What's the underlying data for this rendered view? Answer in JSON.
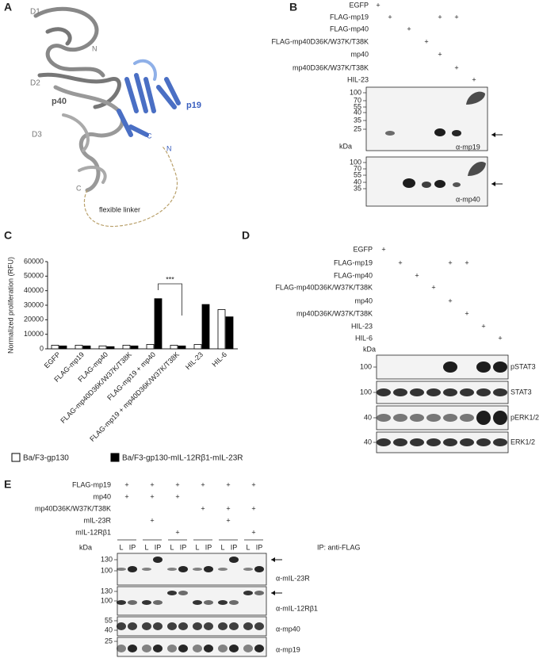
{
  "plus": "+",
  "unit": "kDa",
  "panel_labels": [
    "A",
    "B",
    "C",
    "D",
    "E"
  ],
  "panel_a": {
    "domains": [
      "D1",
      "D2",
      "D3"
    ],
    "chain_labels": [
      "p40",
      "p19"
    ],
    "termini": [
      "N",
      "C",
      "N",
      "C"
    ],
    "linker": "flexible linker"
  },
  "panel_b": {
    "conditions": [
      {
        "name": "EGFP",
        "lanes": [
          1
        ]
      },
      {
        "name": "FLAG-mp19",
        "lanes": [
          2,
          5,
          6
        ]
      },
      {
        "name": "FLAG-mp40",
        "lanes": [
          3
        ]
      },
      {
        "name": "FLAG-mp40D36K/W37K/T38K",
        "lanes": [
          4
        ]
      },
      {
        "name": "mp40",
        "lanes": [
          5
        ]
      },
      {
        "name": "mp40D36K/W37K/T38K",
        "lanes": [
          6
        ]
      },
      {
        "name": "HIL-23",
        "lanes": [
          7
        ]
      }
    ],
    "blots": [
      {
        "markers": [
          100,
          70,
          55,
          40,
          35,
          25
        ],
        "antibody": "α-mp19"
      },
      {
        "markers": [
          100,
          70,
          55,
          40,
          35
        ],
        "antibody": "α-mp40"
      }
    ]
  },
  "chart_data": {
    "type": "bar",
    "ylabel": "Normalized proliferation (RFU)",
    "categories": [
      "EGFP",
      "FLAG-mp19",
      "FLAG-mp40",
      "FLAG-mp40D36K/W37K/T38K",
      "FLAG-mp19 + mp40",
      "FLAG-mp19 + mp40D36K/W37K/T38K",
      "HIL-23",
      "HIL-6"
    ],
    "series": [
      {
        "name": "Ba/F3-gp130",
        "color": "#ffffff",
        "values": [
          2500,
          2500,
          2000,
          2500,
          3000,
          2500,
          3000,
          27000
        ]
      },
      {
        "name": "Ba/F3-gp130-mIL-12Rβ1-mIL-23R",
        "color": "#000000",
        "values": [
          2000,
          2000,
          1500,
          2000,
          34500,
          2000,
          30500,
          22000
        ]
      }
    ],
    "ylim": [
      0,
      60000
    ],
    "yticks": [
      0,
      10000,
      20000,
      30000,
      40000,
      50000,
      60000
    ],
    "annotation": "***"
  },
  "panel_d": {
    "conditions": [
      {
        "name": "EGFP",
        "lanes": [
          1
        ]
      },
      {
        "name": "FLAG-mp19",
        "lanes": [
          2,
          5,
          6
        ]
      },
      {
        "name": "FLAG-mp40",
        "lanes": [
          3
        ]
      },
      {
        "name": "FLAG-mp40D36K/W37K/T38K",
        "lanes": [
          4
        ]
      },
      {
        "name": "mp40",
        "lanes": [
          5
        ]
      },
      {
        "name": "mp40D36K/W37K/T38K",
        "lanes": [
          6
        ]
      },
      {
        "name": "HIL-23",
        "lanes": [
          7
        ]
      },
      {
        "name": "HIL-6",
        "lanes": [
          8
        ]
      }
    ],
    "blots": [
      {
        "markers": [
          100
        ],
        "antibody": "pSTAT3"
      },
      {
        "markers": [
          100
        ],
        "antibody": "STAT3"
      },
      {
        "markers": [
          40
        ],
        "antibody": "pERK1/2"
      },
      {
        "markers": [
          40
        ],
        "antibody": "ERK1/2"
      }
    ]
  },
  "panel_e": {
    "conditions": [
      {
        "name": "FLAG-mp19",
        "groups": [
          1,
          2,
          3,
          4,
          5,
          6
        ]
      },
      {
        "name": "mp40",
        "groups": [
          1,
          2,
          3
        ]
      },
      {
        "name": "mp40D36K/W37K/T38K",
        "groups": [
          4,
          5,
          6
        ]
      },
      {
        "name": "mIL-23R",
        "groups": [
          2,
          5
        ]
      },
      {
        "name": "mIL-12Rβ1",
        "groups": [
          3,
          6
        ]
      }
    ],
    "lane_labels": [
      [
        "L",
        "IP"
      ],
      [
        "L",
        "IP"
      ],
      [
        "L",
        "IP"
      ],
      [
        "L",
        "IP"
      ],
      [
        "L",
        "IP"
      ],
      [
        "L",
        "IP"
      ]
    ],
    "ip_note": "IP: anti-FLAG",
    "blots": [
      {
        "markers": [
          130,
          100
        ],
        "antibody": "α-mIL-23R"
      },
      {
        "markers": [
          130,
          100
        ],
        "antibody": "α-mIL-12Rβ1"
      },
      {
        "markers": [
          55,
          40
        ],
        "antibody": "α-mp40"
      },
      {
        "markers": [
          25
        ],
        "antibody": "α-mp19"
      }
    ]
  }
}
